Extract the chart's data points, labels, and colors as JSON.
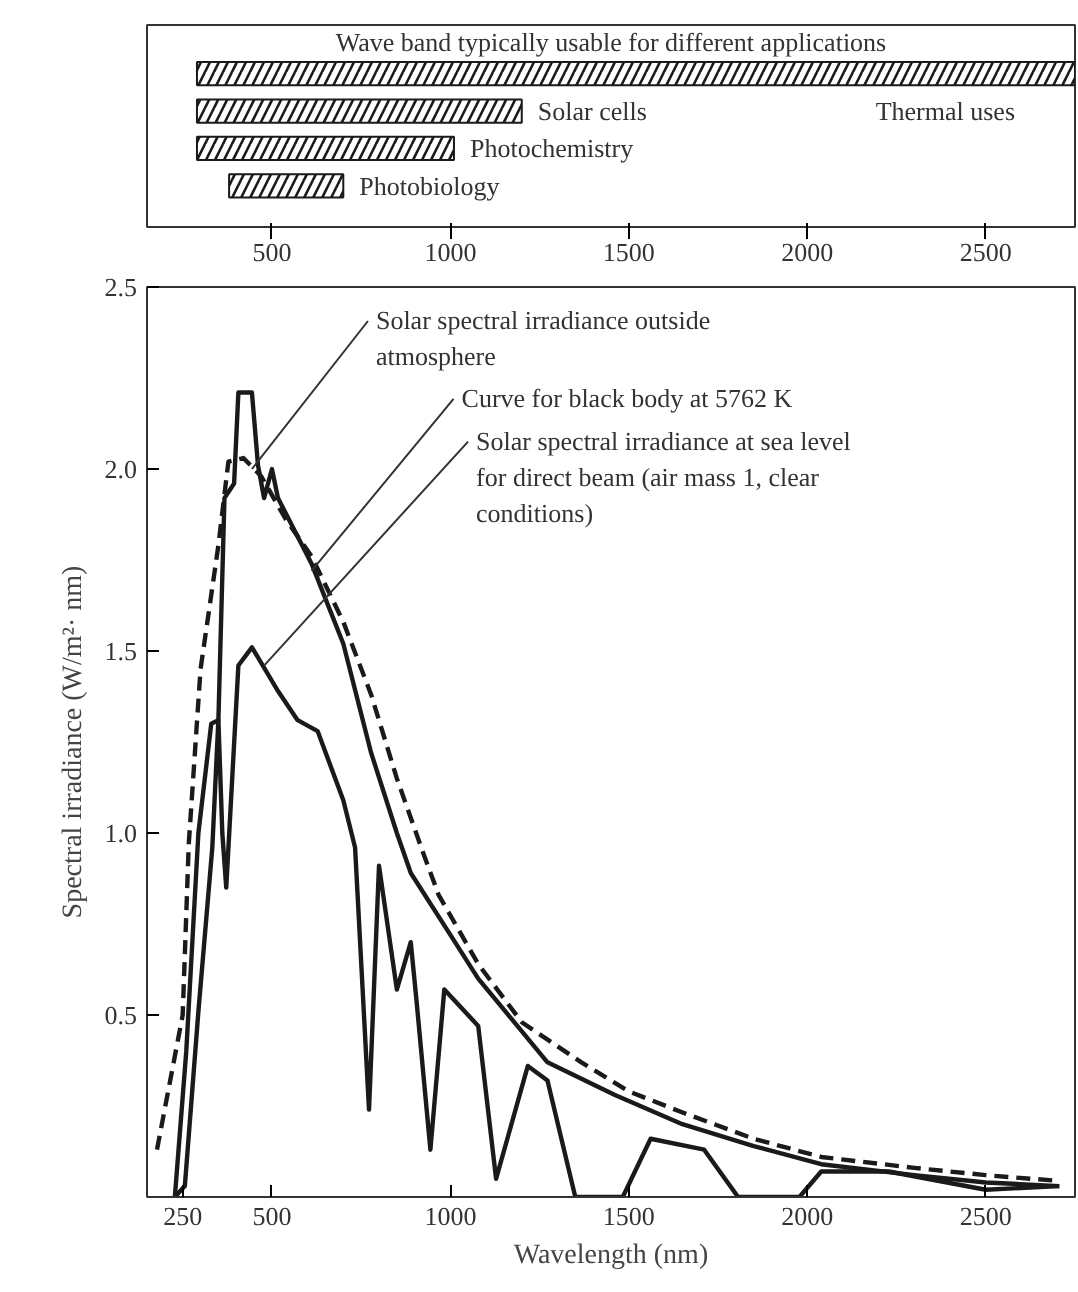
{
  "chart_data": [
    {
      "type": "bar",
      "orientation": "horizontal",
      "title": "Wave band typically usable for different applications",
      "categories": [
        null,
        "Solar cells",
        "Photochemistry",
        "Photobiology"
      ],
      "annotations": [
        "Thermal uses"
      ],
      "base": [
        290,
        290,
        290,
        380
      ],
      "values": [
        2460,
        910,
        720,
        320
      ],
      "color": "#1a1a1a",
      "xlim": [
        150,
        2750
      ],
      "xticks": [
        500,
        1000,
        1500,
        2000,
        2500
      ],
      "tick_labels": "x"
    },
    {
      "type": "line",
      "xlabel": "Wavelength (nm)",
      "ylabel": "Spectral irradiance (W/m²· nm)",
      "xlim": [
        150,
        2750
      ],
      "xticks": [
        250,
        500,
        1000,
        1500,
        2000,
        2500
      ],
      "ylim": [
        0,
        2.5
      ],
      "yticks": [
        {
          "value": 0.5,
          "label": "0.5"
        },
        {
          "value": 1.0,
          "label": "1.0"
        },
        {
          "value": 1.5,
          "label": "1.5"
        },
        {
          "value": 2.0,
          "label": "2.0"
        },
        {
          "value": 2.5,
          "label": "2.5"
        }
      ],
      "grid": false,
      "series": [
        {
          "color": "#1a1a1a",
          "line_style": "dashed",
          "x": [
            178,
            250,
            267,
            300,
            350,
            378,
            420,
            470,
            540,
            611,
            700,
            778,
            850,
            922,
            967,
            1078,
            1200,
            1367,
            1500,
            1656,
            1850,
            2039,
            2300,
            2500,
            2706
          ],
          "values": [
            0.13,
            0.5,
            0.97,
            1.45,
            1.79,
            2.02,
            2.03,
            1.98,
            1.86,
            1.76,
            1.58,
            1.38,
            1.15,
            0.95,
            0.83,
            0.64,
            0.48,
            0.37,
            0.29,
            0.23,
            0.16,
            0.11,
            0.08,
            0.06,
            0.044
          ]
        },
        {
          "color": "#1a1a1a",
          "line_style": "solid",
          "x": [
            228,
            260,
            294,
            330,
            350,
            367,
            394,
            406,
            444,
            461,
            478,
            500,
            517,
            611,
            700,
            778,
            850,
            889,
            1000,
            1078,
            1272,
            1461,
            1650,
            1850,
            2039,
            2300,
            2500,
            2706
          ],
          "values": [
            0.0,
            0.4,
            1.0,
            1.3,
            1.31,
            1.92,
            1.96,
            2.21,
            2.21,
            2.01,
            1.92,
            2.0,
            1.92,
            1.74,
            1.52,
            1.22,
            1.0,
            0.89,
            0.72,
            0.6,
            0.37,
            0.28,
            0.2,
            0.14,
            0.09,
            0.06,
            0.04,
            0.03
          ]
        },
        {
          "color": "#1a1a1a",
          "line_style": "solid",
          "x": [
            228,
            256,
            294,
            333,
            350,
            361,
            372,
            406,
            444,
            517,
            572,
            628,
            700,
            733,
            772,
            800,
            850,
            889,
            906,
            944,
            983,
            1078,
            1128,
            1217,
            1272,
            1350,
            1483,
            1561,
            1711,
            1806,
            1978,
            2039,
            2228,
            2500,
            2706
          ],
          "values": [
            0.0,
            0.03,
            0.51,
            0.96,
            1.31,
            1.0,
            0.85,
            1.46,
            1.51,
            1.39,
            1.31,
            1.28,
            1.09,
            0.96,
            0.24,
            0.91,
            0.57,
            0.7,
            0.53,
            0.13,
            0.57,
            0.47,
            0.05,
            0.36,
            0.32,
            0.0,
            0.0,
            0.16,
            0.13,
            0.0,
            0.0,
            0.07,
            0.07,
            0.02,
            0.03
          ]
        }
      ],
      "annotations": [
        {
          "text": "Solar spectral irradiance outside atmosphere",
          "x": 444,
          "y": 2.0
        },
        {
          "text": "Curve for black body at 5762 K",
          "x": 611,
          "y": 1.72
        },
        {
          "text": "Solar spectral irradiance at sea level for direct beam (air mass 1, clear conditions)",
          "x": 478,
          "y": 1.46
        }
      ]
    }
  ]
}
